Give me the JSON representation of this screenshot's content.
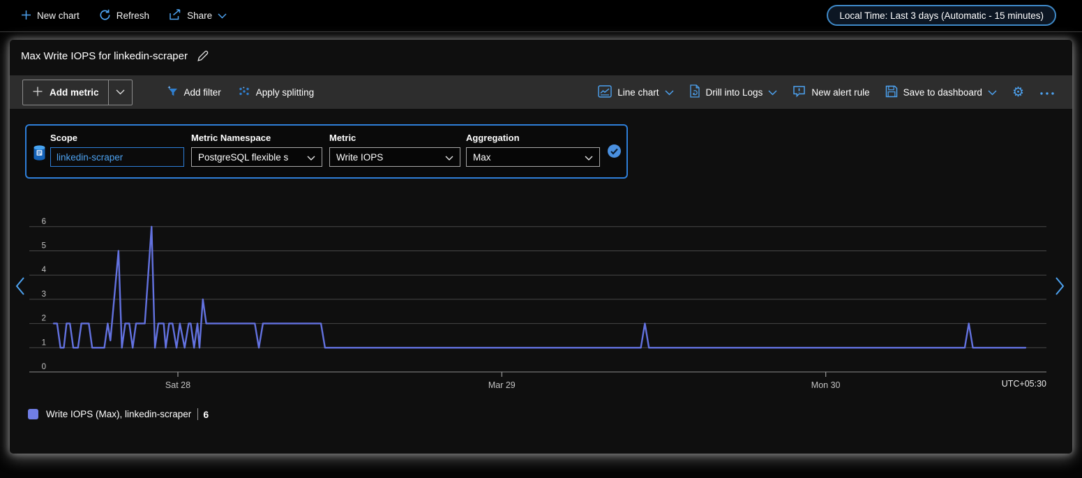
{
  "top_bar": {
    "new_chart": "New chart",
    "refresh": "Refresh",
    "share": "Share",
    "time_range_pill": "Local Time: Last 3 days (Automatic - 15 minutes)"
  },
  "chart_card": {
    "title": "Max Write IOPS for linkedin-scraper",
    "toolbar": {
      "add_metric": "Add metric",
      "add_filter": "Add filter",
      "apply_splitting": "Apply splitting",
      "chart_type": "Line chart",
      "drill_into_logs": "Drill into Logs",
      "new_alert_rule": "New alert rule",
      "save_to_dashboard": "Save to dashboard"
    },
    "metric_config": {
      "scope_label": "Scope",
      "scope_value": "linkedin-scraper",
      "namespace_label": "Metric Namespace",
      "namespace_value": "PostgreSQL flexible s",
      "metric_label": "Metric",
      "metric_value": "Write IOPS",
      "aggregation_label": "Aggregation",
      "aggregation_value": "Max"
    },
    "legend": {
      "series_label": "Write IOPS (Max), linkedin-scraper",
      "max_value": "6"
    },
    "timezone": "UTC+05:30"
  },
  "colors": {
    "accent_blue": "#4da2f0",
    "config_border_blue": "#2e7fd9",
    "series_line": "#6372e0",
    "legend_swatch": "#707ee6"
  },
  "chart_data": {
    "type": "line",
    "title": "Max Write IOPS for linkedin-scraper",
    "xlabel": "",
    "ylabel": "",
    "ylim": [
      0,
      6
    ],
    "y_ticks": [
      0,
      1,
      2,
      3,
      4,
      5,
      6
    ],
    "grid": true,
    "legend_position": "bottom-left",
    "timezone_label": "UTC+05:30",
    "x_hours_span": 72,
    "x_ticks": [
      {
        "label": "Sat 28",
        "hours": 9.2
      },
      {
        "label": "Mar 29",
        "hours": 33.2
      },
      {
        "label": "Mon 30",
        "hours": 57.2
      }
    ],
    "series": [
      {
        "name": "Write IOPS (Max), linkedin-scraper",
        "aggregation": "Max",
        "color": "#6372e0",
        "points_hours_value": [
          [
            0,
            2
          ],
          [
            0.25,
            2
          ],
          [
            0.5,
            1
          ],
          [
            0.75,
            1
          ],
          [
            0.95,
            2
          ],
          [
            1.2,
            2
          ],
          [
            1.45,
            1
          ],
          [
            1.8,
            1
          ],
          [
            2.05,
            2
          ],
          [
            2.6,
            2
          ],
          [
            2.85,
            1
          ],
          [
            3.75,
            1
          ],
          [
            4.0,
            2
          ],
          [
            4.2,
            1.3
          ],
          [
            4.8,
            5
          ],
          [
            5.05,
            1
          ],
          [
            5.3,
            2
          ],
          [
            5.6,
            2
          ],
          [
            5.85,
            1
          ],
          [
            6.1,
            2
          ],
          [
            6.75,
            2
          ],
          [
            7.25,
            6
          ],
          [
            7.5,
            1
          ],
          [
            7.75,
            2
          ],
          [
            8.15,
            2
          ],
          [
            8.3,
            1
          ],
          [
            8.55,
            2
          ],
          [
            8.8,
            2
          ],
          [
            9.1,
            1
          ],
          [
            9.35,
            2
          ],
          [
            9.7,
            1
          ],
          [
            10.0,
            2
          ],
          [
            10.15,
            2
          ],
          [
            10.4,
            1
          ],
          [
            10.65,
            2
          ],
          [
            10.8,
            1
          ],
          [
            11.05,
            3
          ],
          [
            11.3,
            2
          ],
          [
            14.9,
            2
          ],
          [
            15.2,
            1
          ],
          [
            15.5,
            2
          ],
          [
            19.8,
            2
          ],
          [
            20.1,
            1
          ],
          [
            43.5,
            1
          ],
          [
            43.8,
            2
          ],
          [
            44.1,
            1
          ],
          [
            67.5,
            1
          ],
          [
            67.8,
            2
          ],
          [
            68.1,
            1
          ],
          [
            72,
            1
          ]
        ]
      }
    ]
  }
}
